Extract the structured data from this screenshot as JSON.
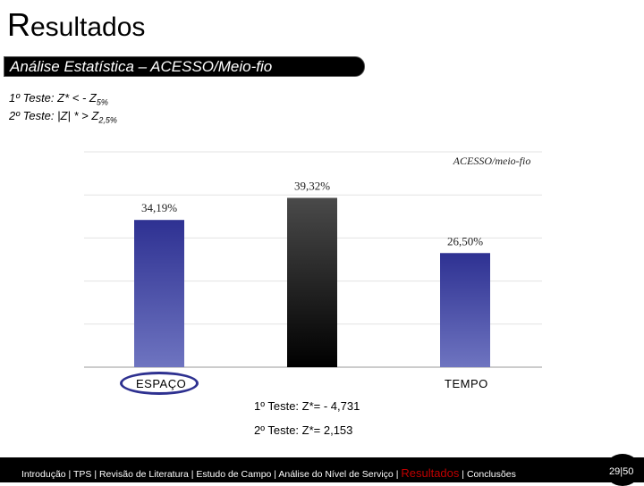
{
  "header": {
    "title_first": "R",
    "title_rest": "esultados",
    "section": "Análise Estatística – ACESSO/Meio-fio"
  },
  "tests": {
    "line1_prefix": "1º Teste: Z* < - Z",
    "line1_sub": "5%",
    "line2_prefix": "2º Teste: ",
    "line2_mid": "Z",
    "line2_suffix": " * > Z",
    "line2_sub": "2,5%"
  },
  "chart_data": {
    "type": "bar",
    "title": "ACESSO/meio-fio",
    "categories": [
      "ESPAÇO",
      "",
      "TEMPO"
    ],
    "values": [
      34.19,
      39.32,
      26.5
    ],
    "data_labels": [
      "34,19%",
      "39,32%",
      "26,50%"
    ],
    "ylim": [
      0,
      50
    ],
    "grid": true,
    "colors": [
      "#3a3f9e",
      "#2a2a2a",
      "#3a3f9e"
    ]
  },
  "results": {
    "line1": "1º Teste: Z*= - 4,731",
    "line2": "2º Teste: Z*= 2,153"
  },
  "footer": {
    "nav_before": "Introdução | TPS | Revisão de Literatura | Estudo de Campo | Análise do Nível de Serviço | ",
    "nav_active": "Resultados",
    "nav_after": " | Conclusões",
    "page": "29|50"
  }
}
